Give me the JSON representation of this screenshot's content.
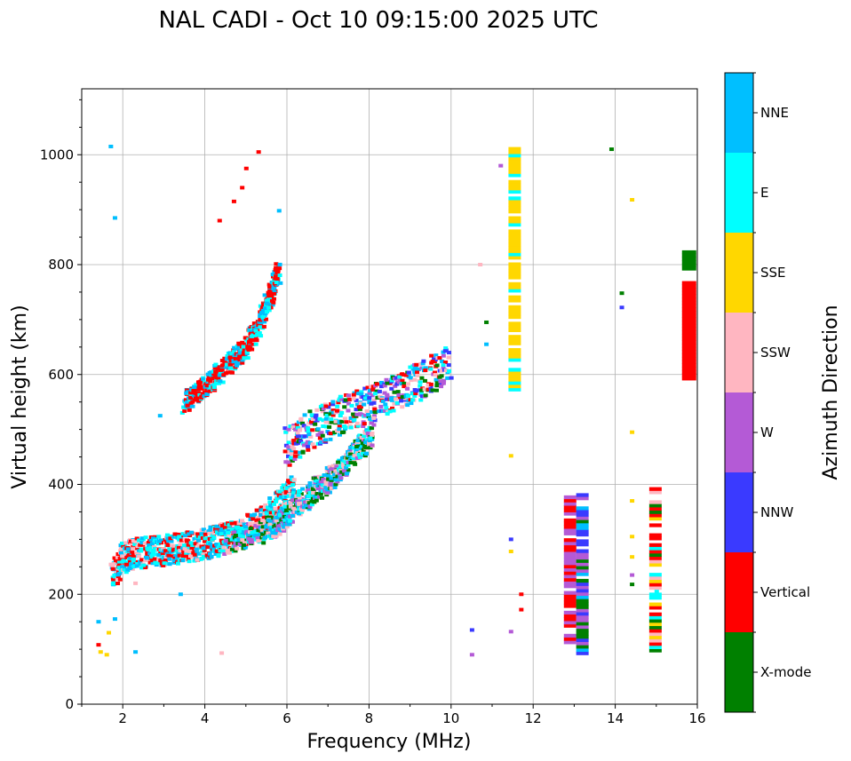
{
  "chart_data": {
    "type": "scatter",
    "title": "NAL CADI - Oct 10 09:15:00 2025 UTC",
    "xlabel": "Frequency (MHz)",
    "ylabel": "Virtual height (km)",
    "xlim": [
      1,
      16
    ],
    "ylim": [
      0,
      1120
    ],
    "xticks": [
      2,
      4,
      6,
      8,
      10,
      12,
      14,
      16
    ],
    "yticks": [
      0,
      200,
      400,
      600,
      800,
      1000
    ],
    "grid": true,
    "colorbar": {
      "label": "Azimuth Direction",
      "categories": [
        {
          "name": "X-mode",
          "color": "#008000"
        },
        {
          "name": "Vertical",
          "color": "#ff0000"
        },
        {
          "name": "NNW",
          "color": "#3a3aff"
        },
        {
          "name": "W",
          "color": "#b45ad6"
        },
        {
          "name": "SSW",
          "color": "#ffb6c1"
        },
        {
          "name": "SSE",
          "color": "#ffd700"
        },
        {
          "name": "E",
          "color": "#00ffff"
        },
        {
          "name": "NNE",
          "color": "#00bfff"
        }
      ]
    },
    "traces": [
      {
        "name": "low-layer-o-trace",
        "x": [
          1.75,
          2.0,
          2.3,
          2.7,
          3.0,
          3.3,
          3.6,
          4.0,
          4.3,
          4.6,
          5.0,
          5.3,
          5.6,
          5.9,
          6.2
        ],
        "y": [
          235,
          265,
          275,
          278,
          280,
          283,
          287,
          292,
          298,
          305,
          315,
          328,
          345,
          370,
          400
        ],
        "spread": 28,
        "colors": [
          "Vertical",
          "NNE",
          "E",
          "SSW",
          "Vertical",
          "NNE",
          "E"
        ]
      },
      {
        "name": "low-layer-x-trace",
        "x": [
          4.5,
          5.0,
          5.5,
          5.8,
          6.0,
          6.3,
          6.6,
          6.9,
          7.2,
          7.5,
          7.8,
          8.1
        ],
        "y": [
          295,
          305,
          318,
          330,
          345,
          365,
          385,
          400,
          420,
          445,
          470,
          490
        ],
        "spread": 22,
        "colors": [
          "X-mode",
          "NNE",
          "E",
          "W",
          "SSW"
        ]
      },
      {
        "name": "upper-cluster-trace",
        "x": [
          6.0,
          6.5,
          7.0,
          7.5,
          8.0,
          8.5,
          9.0,
          9.5,
          10.0
        ],
        "y": [
          470,
          495,
          515,
          530,
          545,
          560,
          580,
          600,
          620
        ],
        "spread": 35,
        "colors": [
          "NNE",
          "E",
          "NNW",
          "W",
          "X-mode",
          "SSW",
          "Vertical"
        ]
      },
      {
        "name": "second-hop-trace",
        "x": [
          3.5,
          3.8,
          4.1,
          4.4,
          4.7,
          5.0,
          5.3,
          5.6,
          5.8
        ],
        "y": [
          550,
          565,
          585,
          605,
          625,
          650,
          690,
          740,
          790
        ],
        "spread": 20,
        "colors": [
          "Vertical",
          "Vertical",
          "E",
          "NNE"
        ]
      }
    ],
    "columns": [
      {
        "name": "column-11-5",
        "x": 11.55,
        "y": [
          570,
          1010
        ],
        "colors": [
          "SSE",
          "SSE",
          "E",
          "SSE"
        ]
      },
      {
        "name": "column-12-9",
        "x": 12.9,
        "y": [
          110,
          375
        ],
        "colors": [
          "W",
          "Vertical",
          "W",
          "Vertical"
        ]
      },
      {
        "name": "column-13-2",
        "x": 13.2,
        "y": [
          90,
          380
        ],
        "colors": [
          "NNW",
          "W",
          "X-mode",
          "NNE",
          "NNW"
        ]
      },
      {
        "name": "column-15-0",
        "x": 14.98,
        "y": [
          95,
          395
        ],
        "colors": [
          "Vertical",
          "SSE",
          "E",
          "X-mode",
          "Vertical",
          "SSW"
        ]
      },
      {
        "name": "column-15-8-green",
        "x": 15.8,
        "y": [
          790,
          825
        ],
        "colors": [
          "X-mode"
        ]
      },
      {
        "name": "column-15-8-red",
        "x": 15.8,
        "y": [
          590,
          765
        ],
        "colors": [
          "Vertical"
        ]
      }
    ],
    "isolated_points": [
      {
        "x": 1.7,
        "y": 1015,
        "c": "NNE"
      },
      {
        "x": 1.8,
        "y": 885,
        "c": "NNE"
      },
      {
        "x": 4.35,
        "y": 880,
        "c": "Vertical"
      },
      {
        "x": 4.7,
        "y": 915,
        "c": "Vertical"
      },
      {
        "x": 4.9,
        "y": 940,
        "c": "Vertical"
      },
      {
        "x": 5.0,
        "y": 975,
        "c": "Vertical"
      },
      {
        "x": 5.3,
        "y": 1005,
        "c": "Vertical"
      },
      {
        "x": 5.8,
        "y": 898,
        "c": "NNE"
      },
      {
        "x": 11.2,
        "y": 980,
        "c": "W"
      },
      {
        "x": 10.7,
        "y": 800,
        "c": "SSW"
      },
      {
        "x": 10.85,
        "y": 695,
        "c": "X-mode"
      },
      {
        "x": 10.85,
        "y": 655,
        "c": "NNE"
      },
      {
        "x": 13.9,
        "y": 1010,
        "c": "X-mode"
      },
      {
        "x": 14.4,
        "y": 918,
        "c": "SSE"
      },
      {
        "x": 14.15,
        "y": 748,
        "c": "X-mode"
      },
      {
        "x": 14.15,
        "y": 722,
        "c": "NNW"
      },
      {
        "x": 14.4,
        "y": 495,
        "c": "SSE"
      },
      {
        "x": 14.4,
        "y": 370,
        "c": "SSE"
      },
      {
        "x": 14.4,
        "y": 305,
        "c": "SSE"
      },
      {
        "x": 14.4,
        "y": 268,
        "c": "SSE"
      },
      {
        "x": 14.4,
        "y": 235,
        "c": "W"
      },
      {
        "x": 14.4,
        "y": 218,
        "c": "X-mode"
      },
      {
        "x": 15.0,
        "y": 205,
        "c": "E"
      },
      {
        "x": 11.45,
        "y": 452,
        "c": "SSE"
      },
      {
        "x": 11.45,
        "y": 300,
        "c": "NNW"
      },
      {
        "x": 11.45,
        "y": 278,
        "c": "SSE"
      },
      {
        "x": 11.7,
        "y": 200,
        "c": "Vertical"
      },
      {
        "x": 11.7,
        "y": 172,
        "c": "Vertical"
      },
      {
        "x": 11.45,
        "y": 132,
        "c": "W"
      },
      {
        "x": 10.5,
        "y": 135,
        "c": "NNW"
      },
      {
        "x": 10.5,
        "y": 90,
        "c": "W"
      },
      {
        "x": 1.4,
        "y": 150,
        "c": "NNE"
      },
      {
        "x": 1.4,
        "y": 108,
        "c": "Vertical"
      },
      {
        "x": 1.45,
        "y": 95,
        "c": "SSE"
      },
      {
        "x": 1.6,
        "y": 90,
        "c": "SSE"
      },
      {
        "x": 1.65,
        "y": 130,
        "c": "SSE"
      },
      {
        "x": 1.8,
        "y": 155,
        "c": "NNE"
      },
      {
        "x": 2.3,
        "y": 95,
        "c": "NNE"
      },
      {
        "x": 2.3,
        "y": 220,
        "c": "SSW"
      },
      {
        "x": 3.4,
        "y": 200,
        "c": "NNE"
      },
      {
        "x": 4.4,
        "y": 93,
        "c": "SSW"
      },
      {
        "x": 2.9,
        "y": 525,
        "c": "NNE"
      }
    ]
  }
}
